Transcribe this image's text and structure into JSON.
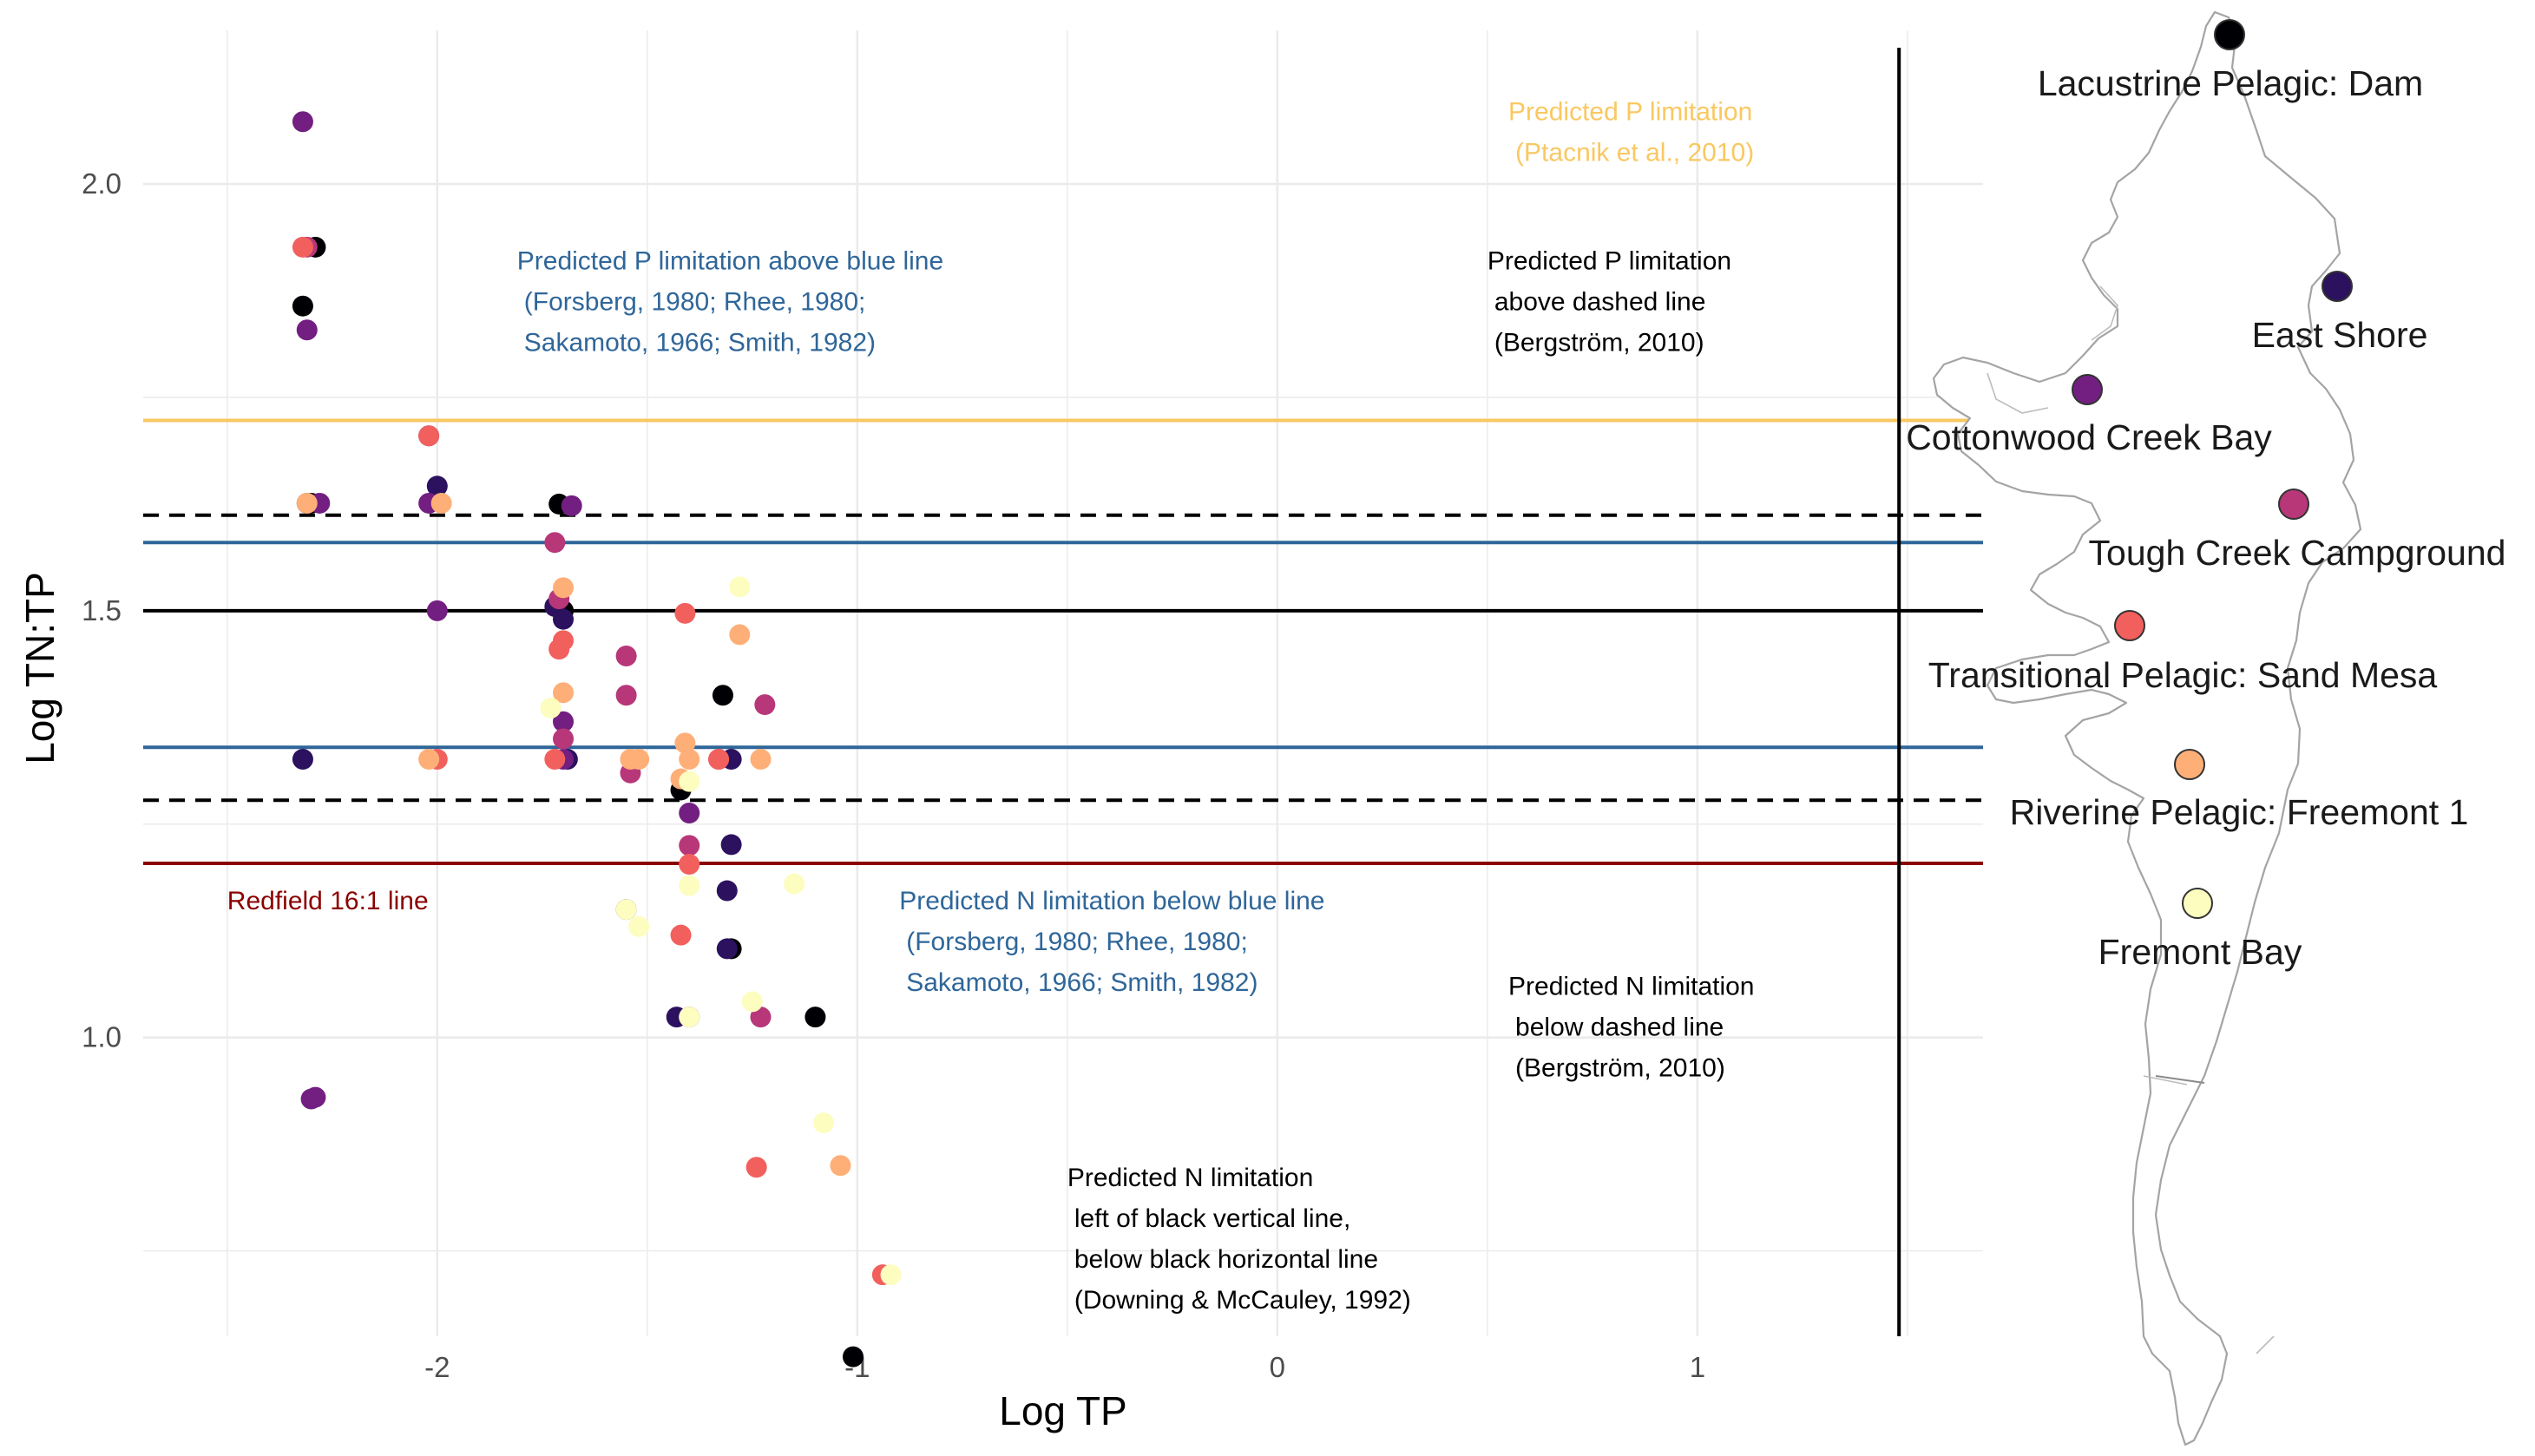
{
  "chart_data": {
    "type": "scatter",
    "xlabel": "Log TP",
    "ylabel": "Log TN:TP",
    "xlim": [
      -2.7,
      1.68
    ],
    "ylim": [
      0.65,
      2.18
    ],
    "x_ticks": [
      -2,
      -1,
      0,
      1
    ],
    "x_tick_labels": [
      "-2",
      "-1",
      "0",
      "1"
    ],
    "y_ticks": [
      1.0,
      1.5,
      2.0
    ],
    "y_tick_labels": [
      "1.0",
      "1.5",
      "2.0"
    ],
    "grid": true,
    "reference_lines": [
      {
        "orientation": "horizontal",
        "value": 1.723,
        "color": "#f9c861",
        "style": "solid"
      },
      {
        "orientation": "horizontal",
        "value": 1.612,
        "color": "#000000",
        "style": "dashed"
      },
      {
        "orientation": "horizontal",
        "value": 1.58,
        "color": "#2f6699",
        "style": "solid"
      },
      {
        "orientation": "horizontal",
        "value": 1.5,
        "color": "#000000",
        "style": "solid"
      },
      {
        "orientation": "horizontal",
        "value": 1.34,
        "color": "#2f6699",
        "style": "solid"
      },
      {
        "orientation": "horizontal",
        "value": 1.278,
        "color": "#000000",
        "style": "dashed"
      },
      {
        "orientation": "horizontal",
        "value": 1.204,
        "color": "#8b0000",
        "style": "solid"
      },
      {
        "orientation": "vertical",
        "value": 1.48,
        "color": "#000000",
        "style": "solid"
      }
    ],
    "annotations": [
      {
        "lines": [
          "Predicted P limitation",
          "(Ptacnik et al., 2010)"
        ],
        "color": "#f9c861",
        "x": 0.55,
        "y": 2.075
      },
      {
        "lines": [
          "Predicted P limitation above blue line",
          "(Forsberg, 1980; Rhee, 1980;",
          "Sakamoto, 1966; Smith, 1982)"
        ],
        "color": "#2f6699",
        "x": -1.81,
        "y": 1.9
      },
      {
        "lines": [
          "Predicted P limitation",
          "above dashed line",
          "(Bergström, 2010)"
        ],
        "color": "#000000",
        "x": 0.5,
        "y": 1.9
      },
      {
        "lines": [
          "Redfield 16:1 line"
        ],
        "color": "#8b0000",
        "x": -2.5,
        "y": 1.15
      },
      {
        "lines": [
          "Predicted N limitation below blue line",
          "(Forsberg, 1980; Rhee, 1980;",
          "Sakamoto, 1966; Smith, 1982)"
        ],
        "color": "#2f6699",
        "x": -0.9,
        "y": 1.15
      },
      {
        "lines": [
          "Predicted N limitation",
          "below dashed line",
          "(Bergström, 2010)"
        ],
        "color": "#000000",
        "x": 0.55,
        "y": 1.05
      },
      {
        "lines": [
          "Predicted N limitation",
          "left of black vertical line,",
          "below black horizontal line",
          "(Downing & McCauley, 1992)"
        ],
        "color": "#000000",
        "x": -0.5,
        "y": 0.826
      }
    ],
    "sites": [
      {
        "name": "Lacustrine Pelagic: Dam",
        "color": "#000004"
      },
      {
        "name": "East Shore",
        "color": "#2c115f"
      },
      {
        "name": "Cottonwood Creek Bay",
        "color": "#721f81"
      },
      {
        "name": "Tough Creek Campground",
        "color": "#b73779"
      },
      {
        "name": "Transitional Pelagic: Sand Mesa",
        "color": "#f1605d"
      },
      {
        "name": "Riverine Pelagic: Freemont 1",
        "color": "#feaf77"
      },
      {
        "name": "Fremont Bay",
        "color": "#fcfdbf"
      }
    ],
    "series": [
      {
        "site_index": 0,
        "points": [
          [
            -2.29,
            1.926
          ],
          [
            -2.32,
            1.857
          ],
          [
            -2.3,
            1.626
          ],
          [
            -1.71,
            1.625
          ],
          [
            -1.7,
            1.5
          ],
          [
            -1.7,
            1.5
          ],
          [
            -1.32,
            1.401
          ],
          [
            -1.42,
            1.29
          ],
          [
            -1.3,
            1.104
          ],
          [
            -1.1,
            1.024
          ],
          [
            -1.01,
            0.626
          ]
        ]
      },
      {
        "site_index": 1,
        "points": [
          [
            -2.31,
            1.626
          ],
          [
            -2.32,
            1.326
          ],
          [
            -2.02,
            1.705
          ],
          [
            -2.0,
            1.646
          ],
          [
            -1.72,
            1.505
          ],
          [
            -1.7,
            1.49
          ],
          [
            -1.69,
            1.326
          ],
          [
            -1.55,
            1.15
          ],
          [
            -1.43,
            1.024
          ],
          [
            -1.3,
            1.226
          ],
          [
            -1.31,
            1.172
          ],
          [
            -1.3,
            1.326
          ],
          [
            -1.31,
            1.104
          ]
        ]
      },
      {
        "site_index": 2,
        "points": [
          [
            -2.32,
            2.073
          ],
          [
            -2.31,
            1.829
          ],
          [
            -2.28,
            1.626
          ],
          [
            -2.3,
            0.928
          ],
          [
            -2.29,
            0.93
          ],
          [
            -2.0,
            1.5
          ],
          [
            -2.02,
            1.626
          ],
          [
            -1.68,
            1.623
          ],
          [
            -1.7,
            1.37
          ],
          [
            -1.7,
            1.326
          ],
          [
            -1.4,
            1.024
          ],
          [
            -1.4,
            1.263
          ]
        ]
      },
      {
        "site_index": 3,
        "points": [
          [
            -2.31,
            1.926
          ],
          [
            -1.72,
            1.58
          ],
          [
            -1.71,
            1.514
          ],
          [
            -1.7,
            1.35
          ],
          [
            -1.55,
            1.447
          ],
          [
            -1.55,
            1.401
          ],
          [
            -1.54,
            1.31
          ],
          [
            -1.4,
            1.225
          ],
          [
            -1.22,
            1.39
          ],
          [
            -1.23,
            1.024
          ],
          [
            -1.33,
            1.326
          ]
        ]
      },
      {
        "site_index": 4,
        "points": [
          [
            -2.32,
            1.926
          ],
          [
            -2.02,
            1.705
          ],
          [
            -2.0,
            1.326
          ],
          [
            -1.71,
            1.455
          ],
          [
            -1.7,
            1.465
          ],
          [
            -1.72,
            1.326
          ],
          [
            -1.41,
            1.497
          ],
          [
            -1.42,
            1.12
          ],
          [
            -1.4,
            1.203
          ],
          [
            -1.33,
            1.326
          ],
          [
            -1.24,
            0.848
          ],
          [
            -0.94,
            0.722
          ]
        ]
      },
      {
        "site_index": 5,
        "points": [
          [
            -2.31,
            1.626
          ],
          [
            -1.99,
            1.626
          ],
          [
            -2.02,
            1.326
          ],
          [
            -1.7,
            1.527
          ],
          [
            -1.7,
            1.404
          ],
          [
            -1.54,
            1.326
          ],
          [
            -1.52,
            1.326
          ],
          [
            -1.41,
            1.345
          ],
          [
            -1.42,
            1.303
          ],
          [
            -1.4,
            1.326
          ],
          [
            -1.28,
            1.472
          ],
          [
            -1.23,
            1.326
          ],
          [
            -1.04,
            0.85
          ]
        ]
      },
      {
        "site_index": 6,
        "points": [
          [
            -1.28,
            1.528
          ],
          [
            -1.73,
            1.386
          ],
          [
            -1.55,
            1.15
          ],
          [
            -1.52,
            1.13
          ],
          [
            -1.4,
            1.178
          ],
          [
            -1.4,
            1.024
          ],
          [
            -1.4,
            1.3
          ],
          [
            -1.15,
            1.18
          ],
          [
            -1.25,
            1.042
          ],
          [
            -1.08,
            0.9
          ],
          [
            -0.92,
            0.722
          ]
        ]
      }
    ]
  },
  "map": {
    "site_labels": [
      "Lacustrine Pelagic: Dam",
      "East Shore",
      "Cottonwood Creek Bay",
      "Tough Creek Campground",
      "Transitional Pelagic: Sand Mesa",
      "Riverine Pelagic: Freemont 1",
      "Fremont Bay"
    ]
  }
}
